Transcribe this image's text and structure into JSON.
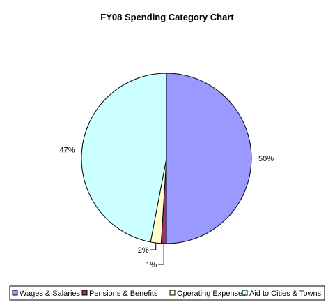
{
  "chart_data": {
    "type": "pie",
    "title": "FY08 Spending Category Chart",
    "slices": [
      {
        "name": "Wages & Salaries",
        "value": 50,
        "label": "50%",
        "color": "#9999ff"
      },
      {
        "name": "Pensions & Benefits",
        "value": 1,
        "label": "1%",
        "color": "#993366"
      },
      {
        "name": "Operating Expenses",
        "value": 2,
        "label": "2%",
        "color": "#ffffcc"
      },
      {
        "name": "Aid to Cities & Towns",
        "value": 47,
        "label": "47%",
        "color": "#ccffff"
      }
    ],
    "legend_position": "bottom"
  }
}
